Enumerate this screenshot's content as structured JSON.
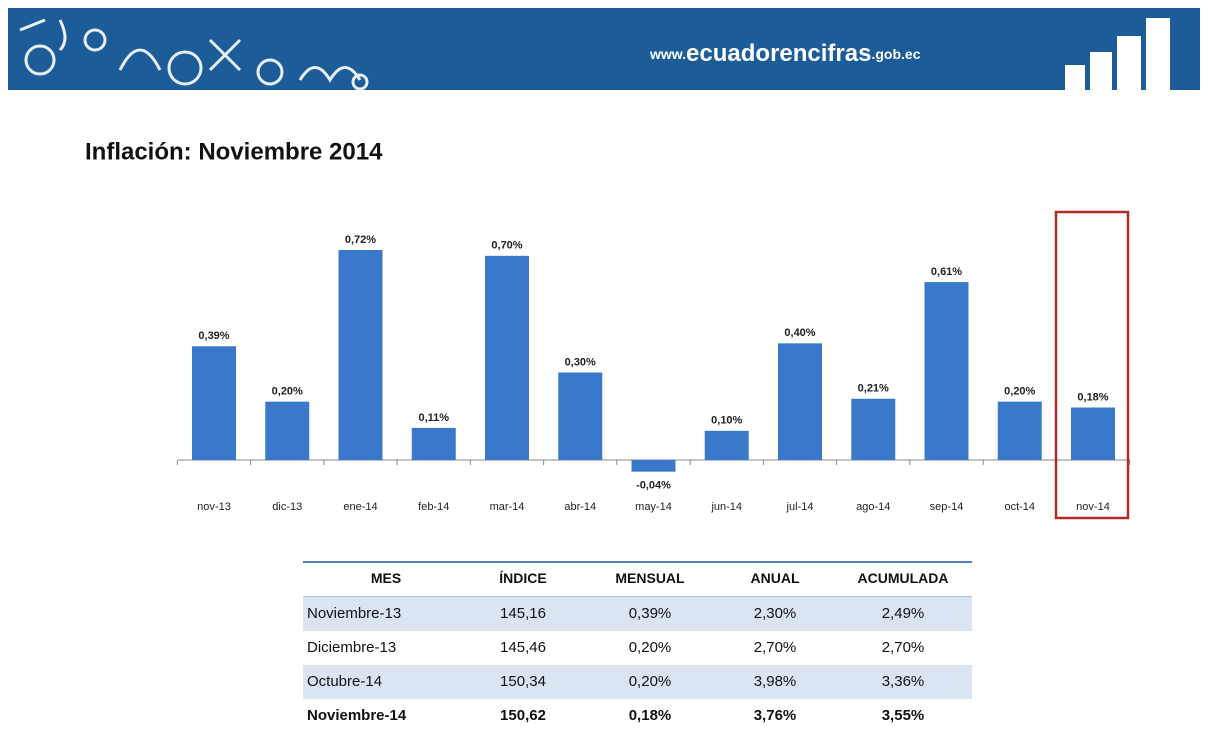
{
  "header": {
    "website": [
      "www.",
      "ecuadorencifras",
      ".gob.ec"
    ]
  },
  "chart_data": {
    "type": "bar",
    "title": "Inflación: Noviembre 2014",
    "categories": [
      "nov-13",
      "dic-13",
      "ene-14",
      "feb-14",
      "mar-14",
      "abr-14",
      "may-14",
      "jun-14",
      "jul-14",
      "ago-14",
      "sep-14",
      "oct-14",
      "nov-14"
    ],
    "values": [
      0.39,
      0.2,
      0.72,
      0.11,
      0.7,
      0.3,
      -0.04,
      0.1,
      0.4,
      0.21,
      0.61,
      0.2,
      0.18
    ],
    "value_labels": [
      "0,39%",
      "0,20%",
      "0,72%",
      "0,11%",
      "0,70%",
      "0,30%",
      "-0,04%",
      "0,10%",
      "0,40%",
      "0,21%",
      "0,61%",
      "0,20%",
      "0,18%"
    ],
    "color": "#3a78cc",
    "highlight": 12
  },
  "table": {
    "header": [
      "MES",
      "ÍNDICE",
      "MENSUAL",
      "ANUAL",
      "ACUMULADA"
    ],
    "rows": [
      [
        "Noviembre-13",
        "145,16",
        "0,39%",
        "2,30%",
        "2,49%"
      ],
      [
        "Diciembre-13",
        "145,46",
        "0,20%",
        "2,70%",
        "2,70%"
      ],
      [
        "Octubre-14",
        "150,34",
        "0,20%",
        "3,98%",
        "3,36%"
      ],
      [
        "Noviembre-14",
        "150,62",
        "0,18%",
        "3,76%",
        "3,55%"
      ]
    ]
  }
}
